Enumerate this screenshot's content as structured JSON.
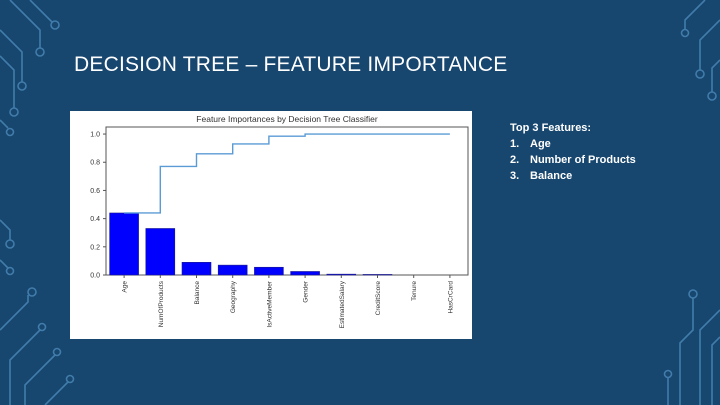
{
  "slide": {
    "title": "DECISION TREE – FEATURE IMPORTANCE"
  },
  "top_features": {
    "heading": "Top 3 Features:",
    "items": [
      {
        "num": "1.",
        "label": "Age"
      },
      {
        "num": "2.",
        "label": "Number of Products"
      },
      {
        "num": "3.",
        "label": "Balance"
      }
    ]
  },
  "colors": {
    "background": "#17466f",
    "circuit": "#4f8fbf",
    "bar": "#0000ff",
    "cumulative_line": "#5b9bd5"
  },
  "chart_data": {
    "type": "bar",
    "title": "Feature Importances by Decision Tree Classifier",
    "categories": [
      "Age",
      "NumOfProducts",
      "Balance",
      "Geography",
      "IsActiveMember",
      "Gender",
      "EstimatedSalary",
      "CreditScore",
      "Tenure",
      "HasCrCard"
    ],
    "values": [
      0.44,
      0.33,
      0.09,
      0.07,
      0.055,
      0.025,
      0.006,
      0.004,
      0.0,
      0.0
    ],
    "series": [
      {
        "type": "bar",
        "values": [
          0.44,
          0.33,
          0.09,
          0.07,
          0.055,
          0.025,
          0.006,
          0.004,
          0.0,
          0.0
        ]
      },
      {
        "type": "step",
        "values": [
          0.44,
          0.77,
          0.86,
          0.93,
          0.985,
          1.0,
          1.0,
          1.0,
          1.0,
          1.0
        ]
      }
    ],
    "ylim": [
      0,
      1.05
    ],
    "yticks": [
      "0.0",
      "0.2",
      "0.4",
      "0.6",
      "0.8",
      "1.0"
    ],
    "ytick_values": [
      0,
      0.2,
      0.4,
      0.6,
      0.8,
      1.0
    ],
    "xlabel": "",
    "ylabel": "",
    "grid": false
  }
}
